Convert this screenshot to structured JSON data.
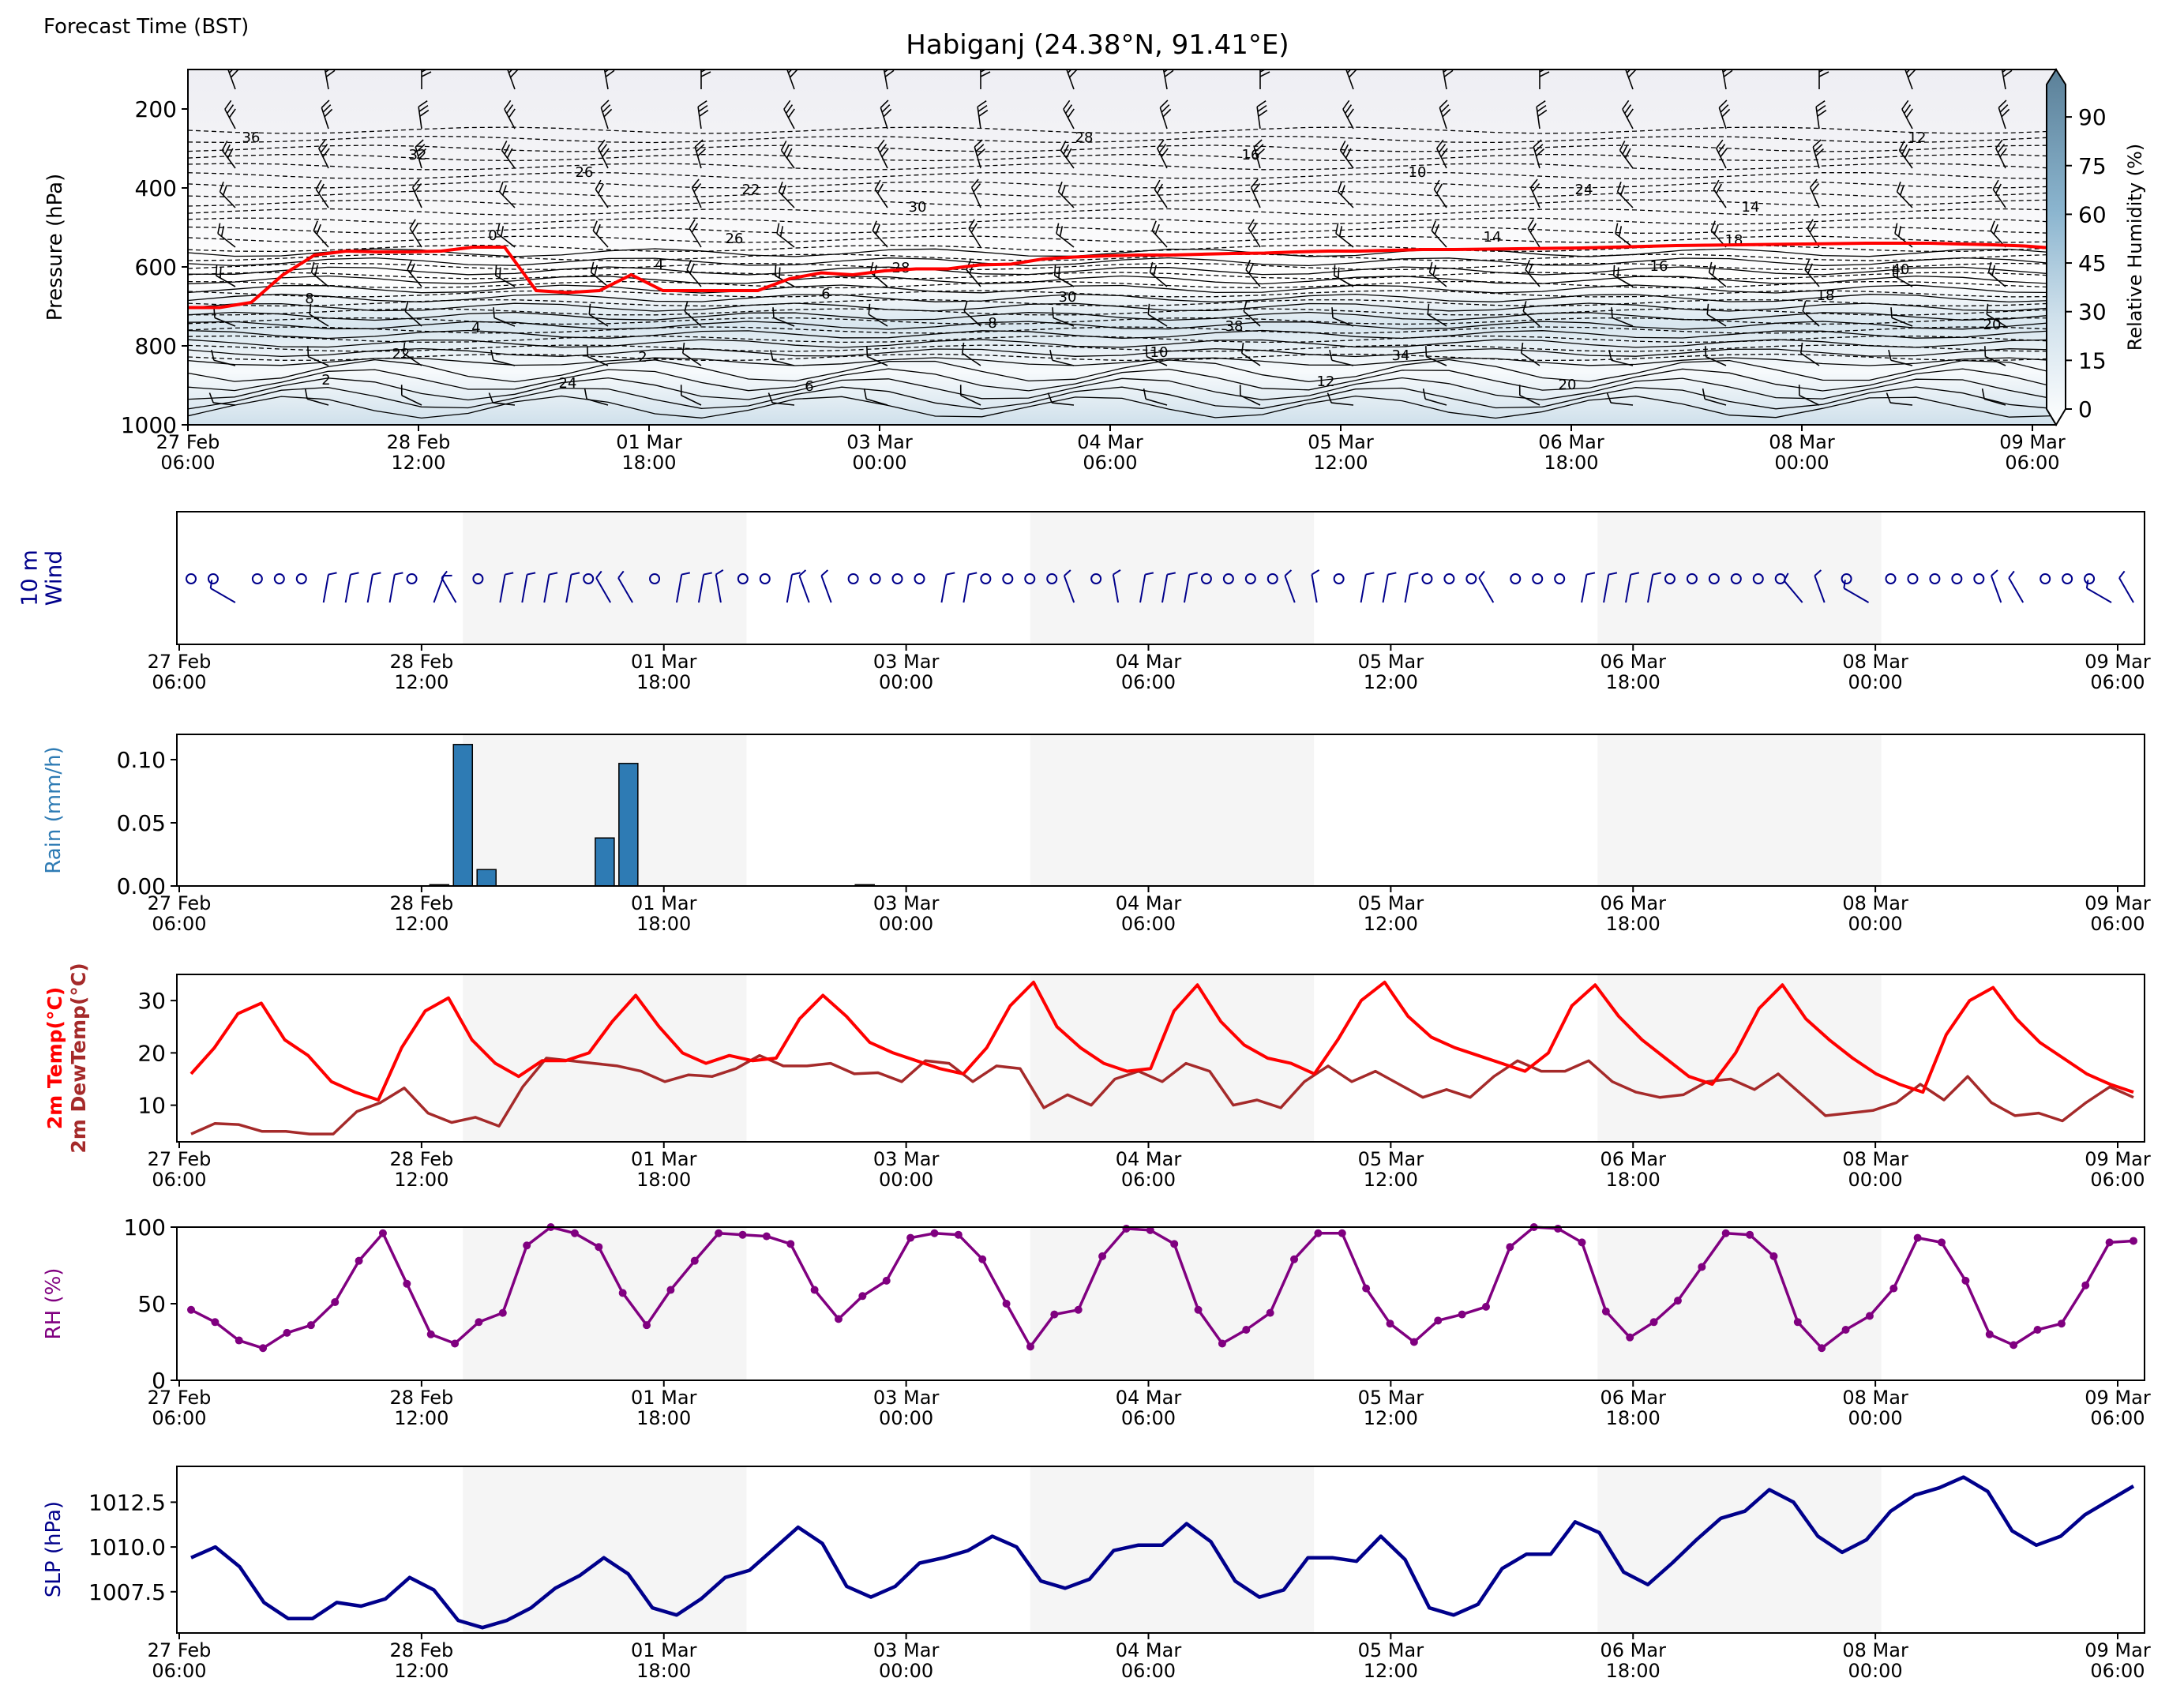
{
  "header": {
    "left_label": "Forecast Time (BST)",
    "title": "Habiganj (24.38°N, 91.41°E)"
  },
  "colors": {
    "rain_bar": "#2e7bb4",
    "temp": "#ff0000",
    "dewtemp": "#a52a2a",
    "rh": "#800080",
    "slp": "#00008b",
    "wind": "#00008b",
    "freezing_line": "#ff0000",
    "shade": "#f5f5f5"
  },
  "chart_data": [
    {
      "type": "heatmap",
      "title": "Habiganj (24.38°N, 91.41°E)",
      "ylabel": "Pressure (hPa)",
      "ylim": [
        1000,
        100
      ],
      "yticks": [
        200,
        400,
        600,
        800,
        1000
      ],
      "xticks": [
        "27 Feb\n06:00",
        "28 Feb\n12:00",
        "01 Mar\n18:00",
        "03 Mar\n00:00",
        "04 Mar\n06:00",
        "05 Mar\n12:00",
        "06 Mar\n18:00",
        "08 Mar\n00:00",
        "09 Mar\n06:00"
      ],
      "colorbar": {
        "label": "Relative Humidity (%)",
        "ticks": [
          0,
          15,
          30,
          45,
          60,
          75,
          90
        ],
        "range": [
          0,
          100
        ]
      },
      "freezing_level_hpa": [
        703,
        703,
        690,
        620,
        570,
        560,
        562,
        562,
        560,
        550,
        550,
        660,
        665,
        660,
        620,
        660,
        660,
        660,
        660,
        630,
        615,
        620,
        610,
        605,
        605,
        595,
        593,
        580,
        575,
        572,
        570,
        570,
        568,
        566,
        565,
        562,
        560,
        560,
        558,
        556,
        556,
        555,
        554,
        553,
        552,
        550,
        548,
        546,
        545,
        544,
        543,
        542,
        541,
        540,
        540,
        540,
        542,
        544,
        547,
        553
      ],
      "contour_labels": [
        "36",
        "32",
        "26",
        "22",
        "30",
        "28",
        "16",
        "10",
        "24",
        "14",
        "12",
        "2",
        "0",
        "4",
        "6",
        "8",
        "10",
        "12",
        "14",
        "16",
        "18",
        "20",
        "22",
        "24",
        "26",
        "28",
        "30",
        "38",
        "34",
        "20",
        "18",
        "40",
        "8",
        "4",
        "2",
        "6"
      ]
    },
    {
      "type": "scatter",
      "title": "",
      "ylabel": "10 m\nWind",
      "xticks": [
        "27 Feb\n06:00",
        "28 Feb\n12:00",
        "01 Mar\n18:00",
        "03 Mar\n00:00",
        "04 Mar\n06:00",
        "05 Mar\n12:00",
        "06 Mar\n18:00",
        "08 Mar\n00:00",
        "09 Mar\n06:00"
      ],
      "wind_dir_deg": [
        0,
        0,
        300,
        0,
        0,
        0,
        10,
        10,
        10,
        10,
        0,
        20,
        330,
        0,
        10,
        10,
        10,
        10,
        0,
        330,
        330,
        0,
        10,
        10,
        350,
        0,
        0,
        10,
        340,
        340,
        0,
        0,
        0,
        0,
        10,
        10,
        0,
        0,
        0,
        0,
        340,
        0,
        350,
        10,
        10,
        10,
        0,
        0,
        0,
        0,
        340,
        350,
        0,
        10,
        10,
        10,
        0,
        0,
        0,
        330,
        0,
        0,
        0,
        10,
        10,
        10,
        10,
        0,
        0,
        0,
        0,
        0,
        0,
        320,
        340,
        0,
        300,
        0,
        0,
        0,
        0,
        0,
        340,
        330,
        0,
        0,
        0,
        300,
        330
      ],
      "wind_calm": [
        1,
        1,
        0,
        1,
        1,
        1,
        0,
        0,
        0,
        0,
        1,
        0,
        0,
        1,
        0,
        0,
        0,
        0,
        1,
        0,
        0,
        1,
        0,
        0,
        0,
        1,
        1,
        0,
        0,
        0,
        1,
        1,
        1,
        1,
        0,
        0,
        1,
        1,
        1,
        1,
        0,
        1,
        0,
        0,
        0,
        0,
        1,
        1,
        1,
        1,
        0,
        0,
        1,
        0,
        0,
        0,
        1,
        1,
        1,
        0,
        1,
        1,
        1,
        0,
        0,
        0,
        0,
        1,
        1,
        1,
        1,
        1,
        1,
        0,
        0,
        1,
        0,
        1,
        1,
        1,
        1,
        1,
        0,
        0,
        1,
        1,
        1,
        0,
        0
      ]
    },
    {
      "type": "bar",
      "title": "",
      "ylabel": "Rain (mm/h)",
      "ylim": [
        0,
        0.12
      ],
      "yticks": [
        "0.00",
        "0.05",
        "0.10"
      ],
      "xticks": [
        "27 Feb\n06:00",
        "28 Feb\n12:00",
        "01 Mar\n18:00",
        "03 Mar\n00:00",
        "04 Mar\n06:00",
        "05 Mar\n12:00",
        "06 Mar\n18:00",
        "08 Mar\n00:00",
        "09 Mar\n06:00"
      ],
      "x_hours": [
        33,
        36,
        39,
        54,
        57,
        87
      ],
      "values": [
        0.001,
        0.112,
        0.013,
        0.038,
        0.097,
        0.001
      ]
    },
    {
      "type": "line",
      "title": "",
      "ylabel": "2m Temp(°C)\n2m DewTemp(°C)",
      "ylim": [
        3,
        35
      ],
      "yticks": [
        10,
        20,
        30
      ],
      "xticks": [
        "27 Feb\n06:00",
        "28 Feb\n12:00",
        "01 Mar\n18:00",
        "03 Mar\n00:00",
        "04 Mar\n06:00",
        "05 Mar\n12:00",
        "06 Mar\n18:00",
        "08 Mar\n00:00",
        "09 Mar\n06:00"
      ],
      "x_hours_step": 3,
      "series": [
        {
          "name": "2m Temp(°C)",
          "values": [
            16,
            21,
            27.5,
            29.5,
            22.5,
            19.5,
            14.5,
            12.5,
            11,
            21,
            28,
            30.5,
            22.5,
            18,
            15.5,
            18.5,
            18.5,
            20,
            26,
            31,
            25,
            20,
            18,
            19.5,
            18.5,
            19,
            26.5,
            31,
            27,
            22,
            20,
            18.5,
            17,
            16,
            21,
            29,
            33.5,
            25,
            21,
            18,
            16.5,
            17,
            28,
            33,
            26,
            21.5,
            19,
            18,
            16,
            22.5,
            30,
            33.5,
            27,
            23,
            21,
            19.5,
            18,
            16.5,
            20,
            29,
            33,
            27,
            22.5,
            19,
            15.5,
            14,
            20,
            28.5,
            33,
            26.5,
            22.5,
            19,
            16,
            14,
            12.5,
            23.5,
            30,
            32.5,
            26.5,
            22,
            19,
            16,
            14,
            12.5
          ]
        },
        {
          "name": "2m DewTemp(°C)",
          "values": [
            4.5,
            6.5,
            6.3,
            5,
            5,
            4.5,
            4.5,
            8.8,
            10.5,
            13.3,
            8.5,
            6.7,
            7.7,
            6,
            13.5,
            19,
            18.5,
            18,
            17.5,
            16.5,
            14.5,
            15.8,
            15.5,
            17,
            19.5,
            17.5,
            17.5,
            18,
            16,
            16.2,
            14.5,
            18.5,
            18,
            14.5,
            17.5,
            17,
            9.5,
            12,
            10,
            15,
            16.5,
            14.5,
            18,
            16.5,
            10,
            11,
            9.5,
            14.5,
            17.5,
            14.5,
            16.5,
            14,
            11.5,
            13,
            11.5,
            15.5,
            18.5,
            16.5,
            16.5,
            18.5,
            14.5,
            12.5,
            11.5,
            12,
            14.5,
            15,
            13,
            16,
            12,
            8,
            8.5,
            9,
            10.5,
            14,
            11,
            15.5,
            10.5,
            8,
            8.5,
            7,
            10.5,
            13.5,
            11.5
          ]
        }
      ]
    },
    {
      "type": "line",
      "title": "",
      "ylabel": "RH (%)",
      "ylim": [
        0,
        100
      ],
      "yticks": [
        0,
        50,
        100
      ],
      "xticks": [
        "27 Feb\n06:00",
        "28 Feb\n12:00",
        "01 Mar\n18:00",
        "03 Mar\n00:00",
        "04 Mar\n06:00",
        "05 Mar\n12:00",
        "06 Mar\n18:00",
        "08 Mar\n00:00",
        "09 Mar\n06:00"
      ],
      "x_hours_step": 3,
      "series": [
        {
          "name": "RH (%)",
          "values": [
            46,
            38,
            26,
            21,
            31,
            36,
            51,
            78,
            96,
            63,
            30,
            24,
            38,
            44,
            88,
            100,
            96,
            87,
            57,
            36,
            59,
            78,
            96,
            95,
            94,
            89,
            59,
            40,
            55,
            65,
            93,
            96,
            95,
            79,
            50,
            22,
            43,
            46,
            81,
            99,
            98,
            89,
            46,
            24,
            33,
            44,
            79,
            96,
            96,
            60,
            37,
            25,
            39,
            43,
            48,
            87,
            100,
            99,
            90,
            45,
            28,
            38,
            52,
            74,
            96,
            95,
            81,
            38,
            21,
            33,
            42,
            60,
            93,
            90,
            65,
            30,
            23,
            33,
            37,
            62,
            90,
            91
          ]
        }
      ]
    },
    {
      "type": "line",
      "title": "",
      "ylabel": "SLP (hPa)",
      "ylim": [
        1005.2,
        1014.5
      ],
      "yticks": [
        "1007.5",
        "1010.0",
        "1012.5"
      ],
      "xticks": [
        "27 Feb\n06:00",
        "28 Feb\n12:00",
        "01 Mar\n18:00",
        "03 Mar\n00:00",
        "04 Mar\n06:00",
        "05 Mar\n12:00",
        "06 Mar\n18:00",
        "08 Mar\n00:00",
        "09 Mar\n06:00"
      ],
      "x_hours_step": 3,
      "series": [
        {
          "name": "SLP (hPa)",
          "values": [
            1009.4,
            1010,
            1008.9,
            1006.9,
            1006,
            1006,
            1006.9,
            1006.7,
            1007.1,
            1008.3,
            1007.6,
            1005.9,
            1005.5,
            1005.9,
            1006.6,
            1007.7,
            1008.4,
            1009.4,
            1008.5,
            1006.6,
            1006.2,
            1007.1,
            1008.3,
            1008.7,
            1009.9,
            1011.1,
            1010.2,
            1007.8,
            1007.2,
            1007.8,
            1009.1,
            1009.4,
            1009.8,
            1010.6,
            1010,
            1008.1,
            1007.7,
            1008.2,
            1009.8,
            1010.1,
            1010.1,
            1011.3,
            1010.3,
            1008.1,
            1007.2,
            1007.6,
            1009.4,
            1009.4,
            1009.2,
            1010.6,
            1009.3,
            1006.6,
            1006.2,
            1006.8,
            1008.8,
            1009.6,
            1009.6,
            1011.4,
            1010.8,
            1008.6,
            1007.9,
            1009.1,
            1010.4,
            1011.6,
            1012,
            1013.2,
            1012.5,
            1010.6,
            1009.7,
            1010.4,
            1012,
            1012.9,
            1013.3,
            1013.9,
            1013.1,
            1010.9,
            1010.1,
            1010.6,
            1011.8,
            1012.6,
            1013.4
          ]
        }
      ]
    }
  ]
}
